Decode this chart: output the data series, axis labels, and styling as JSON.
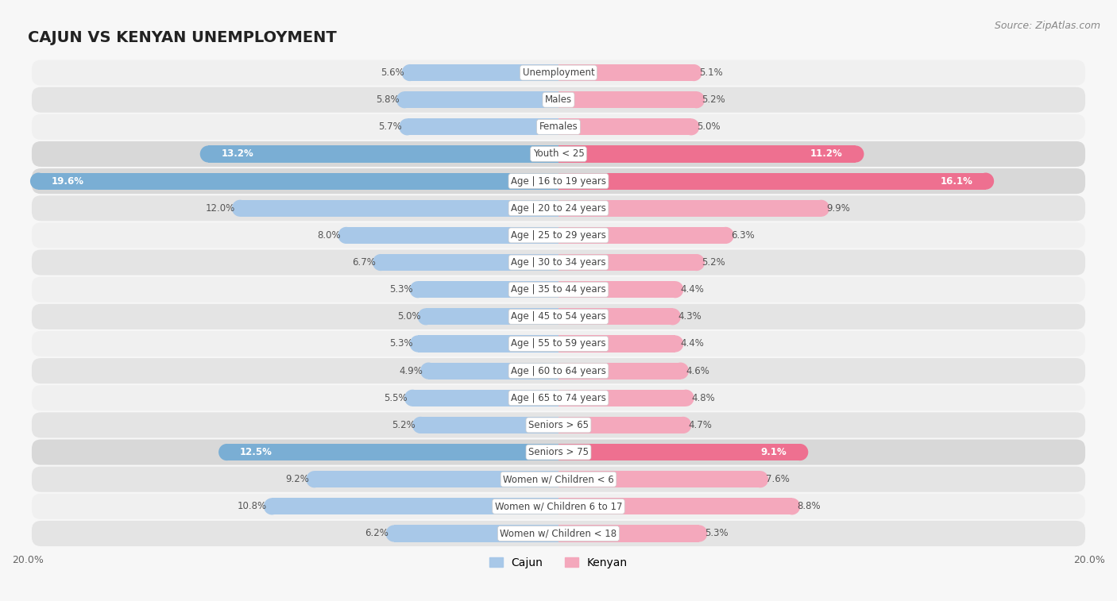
{
  "title": "CAJUN VS KENYAN UNEMPLOYMENT",
  "source": "Source: ZipAtlas.com",
  "categories": [
    "Unemployment",
    "Males",
    "Females",
    "Youth < 25",
    "Age | 16 to 19 years",
    "Age | 20 to 24 years",
    "Age | 25 to 29 years",
    "Age | 30 to 34 years",
    "Age | 35 to 44 years",
    "Age | 45 to 54 years",
    "Age | 55 to 59 years",
    "Age | 60 to 64 years",
    "Age | 65 to 74 years",
    "Seniors > 65",
    "Seniors > 75",
    "Women w/ Children < 6",
    "Women w/ Children 6 to 17",
    "Women w/ Children < 18"
  ],
  "cajun": [
    5.6,
    5.8,
    5.7,
    13.2,
    19.6,
    12.0,
    8.0,
    6.7,
    5.3,
    5.0,
    5.3,
    4.9,
    5.5,
    5.2,
    12.5,
    9.2,
    10.8,
    6.2
  ],
  "kenyan": [
    5.1,
    5.2,
    5.0,
    11.2,
    16.1,
    9.9,
    6.3,
    5.2,
    4.4,
    4.3,
    4.4,
    4.6,
    4.8,
    4.7,
    9.1,
    7.6,
    8.8,
    5.3
  ],
  "cajun_color_normal": "#a8c8e8",
  "kenyan_color_normal": "#f4a8bc",
  "cajun_color_highlight": "#7aaed4",
  "kenyan_color_highlight": "#ee7090",
  "highlight_indices": [
    3,
    4,
    14
  ],
  "bar_height": 0.62,
  "xlim": 20.0,
  "row_bg_light": "#f0f0f0",
  "row_bg_dark": "#e4e4e4",
  "highlight_bg": "#d8d8d8",
  "fig_bg": "#f7f7f7",
  "legend_cajun": "Cajun",
  "legend_kenyan": "Kenyan",
  "title_fontsize": 14,
  "label_fontsize": 8.5,
  "tick_fontsize": 9
}
